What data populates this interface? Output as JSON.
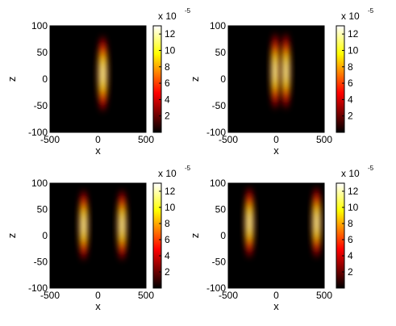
{
  "chart_data": [
    {
      "type": "heatmap",
      "xlabel": "x",
      "ylabel": "z",
      "xlim": [
        -500,
        500
      ],
      "ylim": [
        -100,
        100
      ],
      "x_ticks": [
        "-500",
        "0",
        "500"
      ],
      "y_ticks": [
        "100",
        "50",
        "0",
        "-50",
        "-100"
      ],
      "colorbar": {
        "ticks": [
          "12",
          "10",
          "8",
          "6",
          "4",
          "2"
        ],
        "tick_values": [
          12,
          10,
          8,
          6,
          4,
          2
        ],
        "range": [
          0,
          13
        ],
        "exponent_label": "x 10",
        "exponent": "-5",
        "colormap": "hot"
      },
      "blobs": [
        {
          "x_center": 50,
          "z_center": 10,
          "x_width": 28,
          "z_width": 38,
          "peak": 12
        }
      ]
    },
    {
      "type": "heatmap",
      "xlabel": "x",
      "ylabel": "z",
      "xlim": [
        -500,
        500
      ],
      "ylim": [
        -100,
        100
      ],
      "x_ticks": [
        "-500",
        "0",
        "500"
      ],
      "y_ticks": [
        "100",
        "50",
        "0",
        "-50",
        "-100"
      ],
      "colorbar": {
        "ticks": [
          "12",
          "10",
          "8",
          "6",
          "4",
          "2"
        ],
        "tick_values": [
          12,
          10,
          8,
          6,
          4,
          2
        ],
        "range": [
          0,
          13
        ],
        "exponent_label": "x 10",
        "exponent": "-5",
        "colormap": "hot"
      },
      "blobs": [
        {
          "x_center": -10,
          "z_center": 15,
          "x_width": 26,
          "z_width": 38,
          "peak": 12
        },
        {
          "x_center": 100,
          "z_center": 15,
          "x_width": 26,
          "z_width": 38,
          "peak": 12
        }
      ]
    },
    {
      "type": "heatmap",
      "xlabel": "x",
      "ylabel": "z",
      "xlim": [
        -500,
        500
      ],
      "ylim": [
        -100,
        100
      ],
      "x_ticks": [
        "-500",
        "0",
        "500"
      ],
      "y_ticks": [
        "100",
        "50",
        "0",
        "-50",
        "-100"
      ],
      "colorbar": {
        "ticks": [
          "12",
          "10",
          "8",
          "6",
          "4",
          "2"
        ],
        "tick_values": [
          12,
          10,
          8,
          6,
          4,
          2
        ],
        "range": [
          0,
          13
        ],
        "exponent_label": "x 10",
        "exponent": "-5",
        "colormap": "hot"
      },
      "blobs": [
        {
          "x_center": -150,
          "z_center": 20,
          "x_width": 26,
          "z_width": 36,
          "peak": 12
        },
        {
          "x_center": 250,
          "z_center": 20,
          "x_width": 26,
          "z_width": 36,
          "peak": 12
        }
      ]
    },
    {
      "type": "heatmap",
      "xlabel": "x",
      "ylabel": "z",
      "xlim": [
        -500,
        500
      ],
      "ylim": [
        -100,
        100
      ],
      "x_ticks": [
        "-500",
        "0",
        "500"
      ],
      "y_ticks": [
        "100",
        "50",
        "0",
        "-50",
        "-100"
      ],
      "colorbar": {
        "ticks": [
          "12",
          "10",
          "8",
          "6",
          "4",
          "2"
        ],
        "tick_values": [
          12,
          10,
          8,
          6,
          4,
          2
        ],
        "range": [
          0,
          13
        ],
        "exponent_label": "x 10",
        "exponent": "-5",
        "colormap": "hot"
      },
      "blobs": [
        {
          "x_center": -280,
          "z_center": 25,
          "x_width": 26,
          "z_width": 36,
          "peak": 12
        },
        {
          "x_center": 420,
          "z_center": 25,
          "x_width": 26,
          "z_width": 36,
          "peak": 12
        }
      ]
    }
  ]
}
